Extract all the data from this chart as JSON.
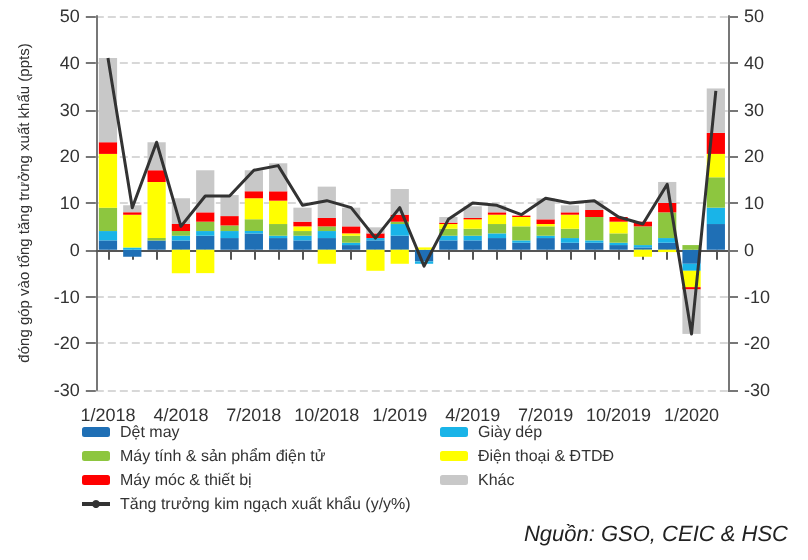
{
  "chart_data": {
    "type": "bar",
    "stacked": true,
    "ylabel": "đóng góp vào tổng tăng trưởng xuất khẩu (ppts)",
    "categories": [
      "1/2018",
      null,
      null,
      "4/2018",
      null,
      null,
      "7/2018",
      null,
      null,
      "10/2018",
      null,
      null,
      "1/2019",
      null,
      null,
      "4/2019",
      null,
      null,
      "7/2019",
      null,
      null,
      "10/2019",
      null,
      null,
      "1/2020",
      null
    ],
    "series": [
      {
        "name": "Dệt may",
        "color": "#1f6fb5",
        "values": [
          2,
          -1.5,
          2,
          2,
          3,
          2.5,
          3.5,
          2.5,
          2,
          2.5,
          1,
          2,
          3,
          -2.5,
          2,
          2,
          2.5,
          1.5,
          2.5,
          1.5,
          1.5,
          1,
          0.5,
          1.5,
          -3,
          5.5
        ]
      },
      {
        "name": "Giày dép",
        "color": "#19b4e8",
        "values": [
          2,
          0.5,
          0,
          1,
          1,
          1.5,
          0.5,
          0.5,
          1,
          1.5,
          0.5,
          0.5,
          2.5,
          -0.5,
          1,
          1,
          1,
          0.5,
          0.5,
          1,
          0.5,
          0.5,
          0.5,
          1,
          -1.5,
          3.5
        ]
      },
      {
        "name": "Máy tính & sản phẩm điện tử",
        "color": "#8dc63f",
        "values": [
          5,
          0,
          0.5,
          1,
          2,
          1.2,
          2.5,
          2.5,
          1,
          1,
          1.5,
          0,
          0.5,
          0,
          1.5,
          1.5,
          2,
          3,
          2,
          2,
          5,
          2,
          4,
          5.5,
          1,
          6.5
        ]
      },
      {
        "name": "Điện thoại & ĐTDĐ",
        "color": "#ffff00",
        "values": [
          11.5,
          7,
          12,
          -5,
          -5,
          0,
          4.5,
          5,
          1,
          -3,
          0.5,
          -4.5,
          -3,
          0.5,
          1,
          2,
          2,
          2,
          0.5,
          3,
          0,
          2.5,
          -1.5,
          -0.5,
          -3.5,
          5
        ]
      },
      {
        "name": "Máy móc & thiết bị",
        "color": "#ff0000",
        "values": [
          2.5,
          0.5,
          2.5,
          1.5,
          2,
          2,
          1.5,
          2,
          1,
          1.8,
          1.5,
          1,
          1.5,
          0,
          0.3,
          0.3,
          0.5,
          0.3,
          1,
          0.5,
          1.5,
          1,
          1,
          2,
          -0.5,
          4.5
        ]
      },
      {
        "name": "Khác",
        "color": "#c8c8c8",
        "values": [
          18,
          1.5,
          6,
          5.5,
          9,
          4.5,
          4.5,
          6,
          3,
          6.7,
          4,
          1.3,
          5.5,
          null,
          1.2,
          2.5,
          1.5,
          null,
          4.5,
          1.5,
          2,
          0,
          null,
          4.5,
          -9.5,
          9.5
        ]
      },
      {
        "name": "Tăng trưởng kim ngạch xuất khẩu (y/y%)",
        "type": "line",
        "color": "#333333",
        "values": [
          41,
          9,
          23,
          5,
          11.5,
          11.5,
          17,
          18,
          9.5,
          10.5,
          9,
          2.5,
          9,
          -3.5,
          6.5,
          10,
          9.5,
          7.5,
          11,
          10,
          10.5,
          7,
          5.5,
          14,
          -18,
          34
        ]
      }
    ],
    "ylim": [
      -30,
      50
    ],
    "yticks": [
      -30,
      -20,
      -10,
      0,
      10,
      20,
      30,
      40,
      50
    ],
    "y2lim": [
      -30,
      50
    ],
    "y2ticks": [
      -30,
      -20,
      -10,
      0,
      10,
      20,
      30,
      40,
      50
    ],
    "grid": "y",
    "legend": "bottom",
    "annotations": [
      "Nguồn: GSO, CEIC & HSC"
    ]
  }
}
